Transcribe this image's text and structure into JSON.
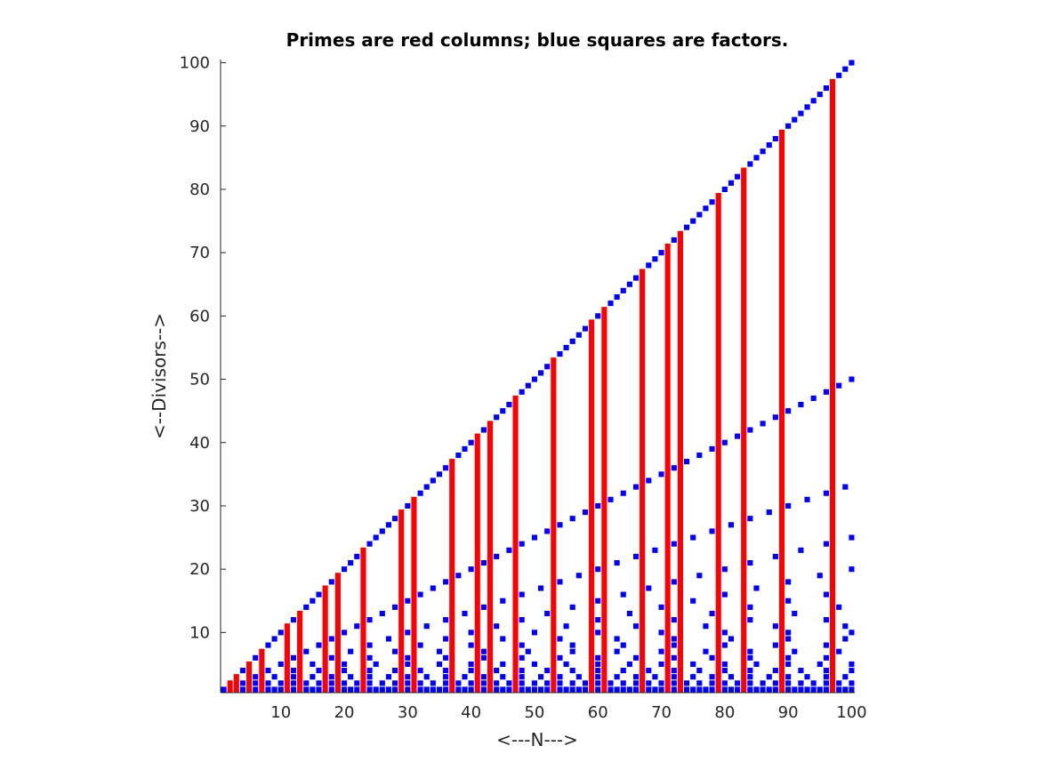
{
  "chart_data": {
    "type": "heatmap",
    "title": "Primes are red columns; blue squares are factors.",
    "xlabel": "<---N--->",
    "ylabel": "<--Divisors-->",
    "N": 100,
    "xlim": [
      0.5,
      100.5
    ],
    "ylim": [
      0.5,
      100.5
    ],
    "xticks": [
      10,
      20,
      30,
      40,
      50,
      60,
      70,
      80,
      90,
      100
    ],
    "yticks": [
      10,
      20,
      30,
      40,
      50,
      60,
      70,
      80,
      90,
      100
    ],
    "encoding": {
      "cell_rule": "blue square at (n, d) when d divides n",
      "prime_rule": "red column from 1 to n when n is prime"
    },
    "primes": [
      2,
      3,
      5,
      7,
      11,
      13,
      17,
      19,
      23,
      29,
      31,
      37,
      41,
      43,
      47,
      53,
      59,
      61,
      67,
      71,
      73,
      79,
      83,
      89,
      97
    ],
    "colors": {
      "factor": "#0000ff",
      "prime": "#ff0000",
      "axis": "#262626",
      "background": "#ffffff"
    },
    "grid": false
  }
}
